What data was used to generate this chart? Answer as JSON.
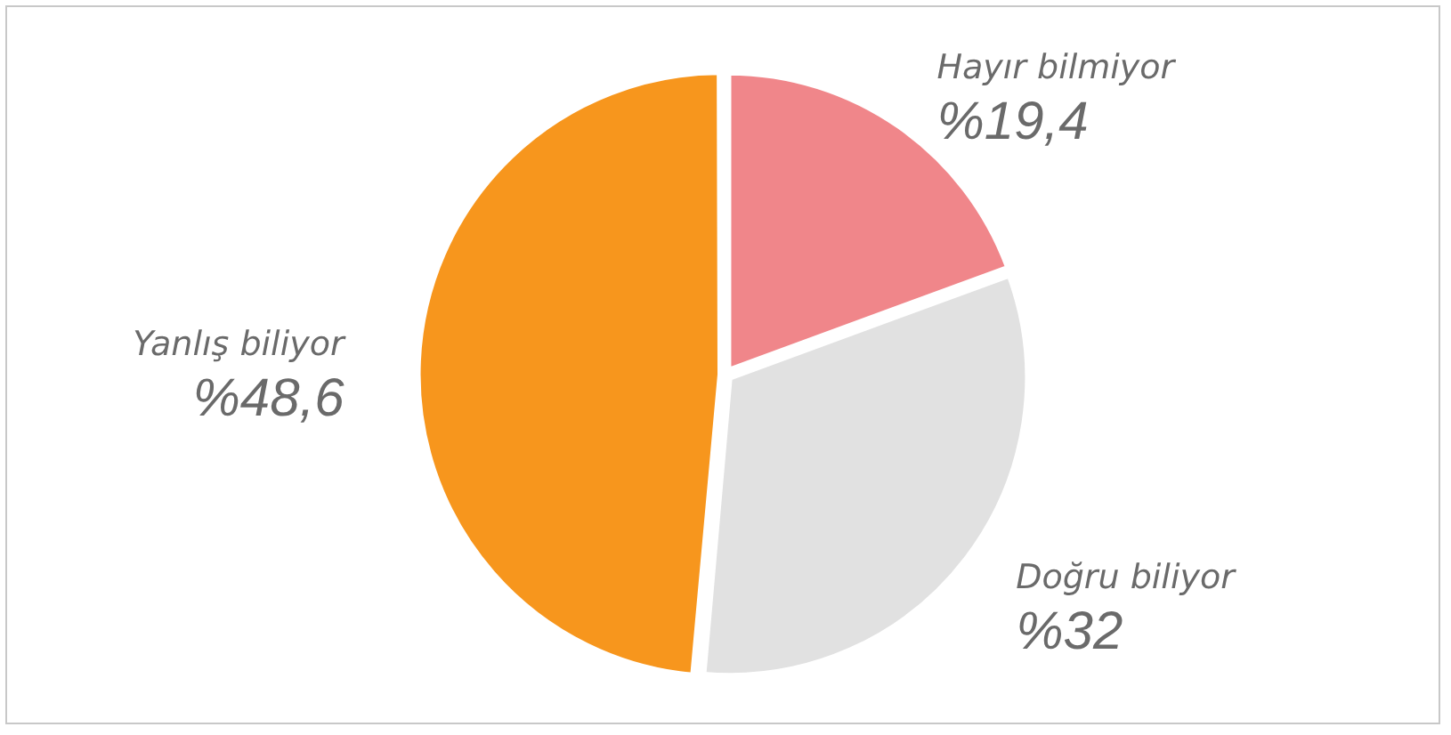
{
  "chart_data": {
    "type": "pie",
    "categories": [
      "Hayır bilmiyor",
      "Doğru biliyor",
      "Yanlış biliyor"
    ],
    "values": [
      19.4,
      32,
      48.6
    ],
    "colors": [
      "#f0868a",
      "#e1e1e1",
      "#f7961d"
    ],
    "value_labels": [
      "%19,4",
      "%32",
      "%48,6"
    ],
    "legend": false
  }
}
